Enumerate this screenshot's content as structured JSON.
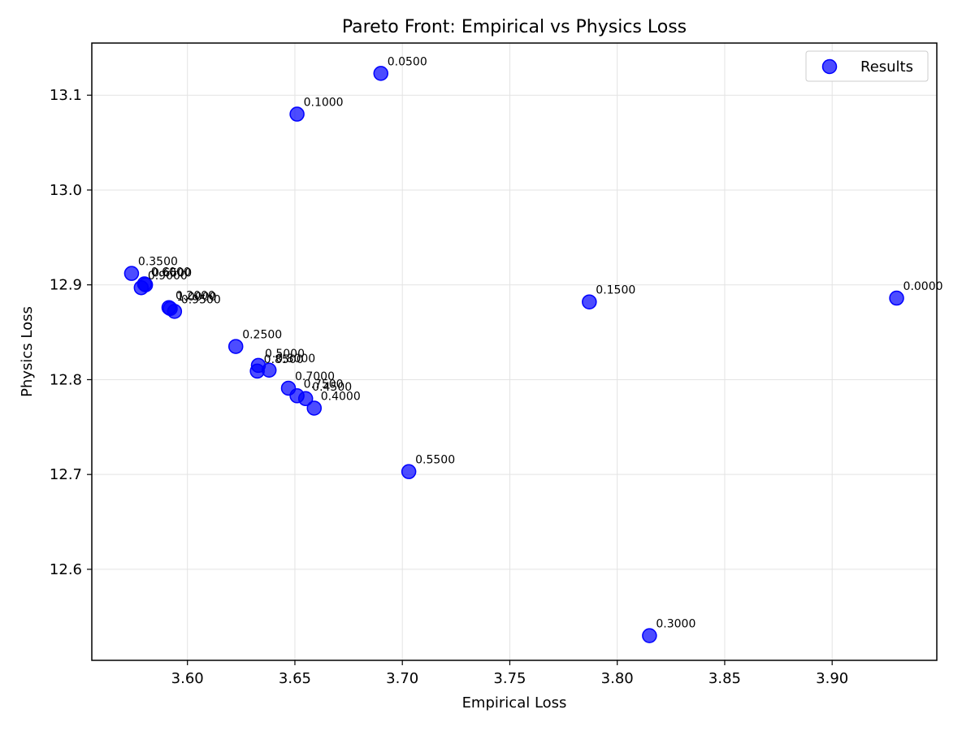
{
  "chart_data": {
    "type": "scatter",
    "title": "Pareto Front: Empirical vs Physics Loss",
    "xlabel": "Empirical Loss",
    "ylabel": "Physics Loss",
    "xlim": [
      3.5555,
      3.9487
    ],
    "ylim": [
      12.504,
      13.155
    ],
    "xticks": [
      3.6,
      3.65,
      3.7,
      3.75,
      3.8,
      3.85,
      3.9
    ],
    "xtick_labels": [
      "3.60",
      "3.65",
      "3.70",
      "3.75",
      "3.80",
      "3.85",
      "3.90"
    ],
    "yticks": [
      12.6,
      12.7,
      12.8,
      12.9,
      13.0,
      13.1
    ],
    "ytick_labels": [
      "12.6",
      "12.7",
      "12.8",
      "12.9",
      "13.0",
      "13.1"
    ],
    "grid": true,
    "legend": {
      "position": "top-right",
      "entries": [
        "Results"
      ]
    },
    "series": [
      {
        "name": "Results",
        "color": "#0000ff",
        "points": [
          {
            "x": 3.93,
            "y": 12.886,
            "label": "0.0000"
          },
          {
            "x": 3.69,
            "y": 13.123,
            "label": "0.0500"
          },
          {
            "x": 3.651,
            "y": 13.08,
            "label": "0.1000"
          },
          {
            "x": 3.787,
            "y": 12.882,
            "label": "0.1500"
          },
          {
            "x": 3.5914,
            "y": 12.876,
            "label": "0.2000"
          },
          {
            "x": 3.6225,
            "y": 12.835,
            "label": "0.2500"
          },
          {
            "x": 3.815,
            "y": 12.53,
            "label": "0.3000"
          },
          {
            "x": 3.574,
            "y": 12.912,
            "label": "0.3500"
          },
          {
            "x": 3.659,
            "y": 12.77,
            "label": "0.4000"
          },
          {
            "x": 3.655,
            "y": 12.78,
            "label": "0.4500"
          },
          {
            "x": 3.633,
            "y": 12.815,
            "label": "0.5000"
          },
          {
            "x": 3.703,
            "y": 12.703,
            "label": "0.5500"
          },
          {
            "x": 3.58,
            "y": 12.901,
            "label": "0.6000"
          },
          {
            "x": 3.5805,
            "y": 12.9,
            "label": "0.6500"
          },
          {
            "x": 3.647,
            "y": 12.791,
            "label": "0.7000"
          },
          {
            "x": 3.651,
            "y": 12.783,
            "label": "0.7500"
          },
          {
            "x": 3.638,
            "y": 12.81,
            "label": "0.8000"
          },
          {
            "x": 3.6325,
            "y": 12.809,
            "label": "0.8500"
          },
          {
            "x": 3.5785,
            "y": 12.897,
            "label": "0.9000"
          },
          {
            "x": 3.594,
            "y": 12.872,
            "label": "0.9500"
          },
          {
            "x": 3.592,
            "y": 12.875,
            "label": "1.0000"
          }
        ]
      }
    ]
  }
}
